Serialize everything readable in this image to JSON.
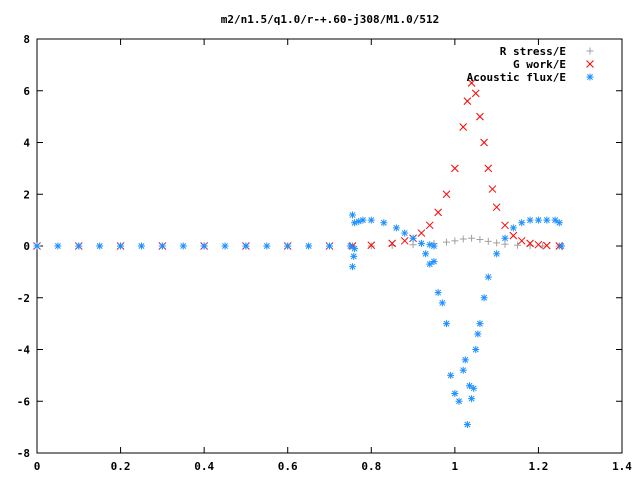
{
  "chart_data": {
    "type": "scatter",
    "title": "m2/n1.5/q1.0/r-+.60-j308/M1.0/512",
    "xlabel": "",
    "ylabel": "",
    "xlim": [
      0,
      1.4
    ],
    "ylim": [
      -8,
      8
    ],
    "grid": false,
    "legend_position": "top-right",
    "x_ticks": [
      "0",
      "0.2",
      "0.4",
      "0.6",
      "0.8",
      "1",
      "1.2",
      "1.4"
    ],
    "y_ticks": [
      "8",
      "6",
      "4",
      "2",
      "0",
      "-2",
      "-4",
      "-6",
      "-8"
    ],
    "series": [
      {
        "name": "R stress/E",
        "color": "#a0a0a0",
        "marker": "plus",
        "x": [
          0.0,
          0.1,
          0.2,
          0.3,
          0.4,
          0.5,
          0.6,
          0.7,
          0.755,
          0.8,
          0.85,
          0.9,
          0.95,
          0.98,
          1.0,
          1.02,
          1.04,
          1.06,
          1.08,
          1.1,
          1.12,
          1.15,
          1.18,
          1.21,
          1.25
        ],
        "y": [
          0.0,
          0.0,
          0.0,
          0.0,
          0.0,
          0.0,
          0.0,
          0.0,
          0.0,
          0.0,
          0.02,
          0.05,
          0.1,
          0.15,
          0.2,
          0.27,
          0.3,
          0.25,
          0.18,
          0.12,
          0.07,
          0.03,
          0.01,
          0.0,
          0.0
        ]
      },
      {
        "name": "G work/E",
        "color": "#ff0000",
        "marker": "cross",
        "x": [
          0.0,
          0.1,
          0.2,
          0.3,
          0.4,
          0.5,
          0.6,
          0.7,
          0.755,
          0.8,
          0.85,
          0.88,
          0.9,
          0.92,
          0.94,
          0.96,
          0.98,
          1.0,
          1.02,
          1.03,
          1.04,
          1.05,
          1.06,
          1.07,
          1.08,
          1.09,
          1.1,
          1.12,
          1.14,
          1.16,
          1.18,
          1.2,
          1.22,
          1.25
        ],
        "y": [
          0.0,
          0.0,
          0.0,
          0.0,
          0.0,
          0.0,
          0.0,
          0.0,
          0.0,
          0.03,
          0.1,
          0.2,
          0.3,
          0.5,
          0.8,
          1.3,
          2.0,
          3.0,
          4.6,
          5.6,
          6.3,
          5.9,
          5.0,
          4.0,
          3.0,
          2.2,
          1.5,
          0.8,
          0.4,
          0.2,
          0.1,
          0.05,
          0.02,
          0.0
        ]
      },
      {
        "name": "Acoustic flux/E",
        "color": "#1e90ff",
        "marker": "asterisk",
        "x": [
          0.0,
          0.05,
          0.1,
          0.15,
          0.2,
          0.25,
          0.3,
          0.35,
          0.4,
          0.45,
          0.5,
          0.55,
          0.6,
          0.65,
          0.7,
          0.75,
          0.755,
          0.76,
          0.77,
          0.78,
          0.8,
          0.83,
          0.86,
          0.88,
          0.9,
          0.92,
          0.94,
          0.95,
          0.755,
          0.758,
          0.76,
          0.93,
          0.94,
          0.95,
          0.96,
          0.97,
          0.98,
          0.99,
          1.0,
          1.01,
          1.02,
          1.025,
          1.03,
          1.035,
          1.04,
          1.045,
          1.05,
          1.055,
          1.06,
          1.07,
          1.08,
          1.1,
          1.12,
          1.14,
          1.16,
          1.18,
          1.2,
          1.22,
          1.24,
          1.25,
          1.255
        ],
        "y": [
          0.0,
          0.0,
          0.0,
          0.0,
          0.0,
          0.0,
          0.0,
          0.0,
          0.0,
          0.0,
          0.0,
          0.0,
          0.0,
          0.0,
          0.0,
          0.0,
          1.2,
          0.9,
          0.95,
          1.0,
          1.0,
          0.9,
          0.7,
          0.5,
          0.3,
          0.1,
          0.05,
          0.0,
          -0.8,
          -0.4,
          -0.1,
          -0.3,
          -0.7,
          -0.6,
          -1.8,
          -2.2,
          -3.0,
          -5.0,
          -5.7,
          -6.0,
          -4.8,
          -4.4,
          -6.9,
          -5.4,
          -5.9,
          -5.5,
          -4.0,
          -3.4,
          -3.0,
          -2.0,
          -1.2,
          -0.3,
          0.3,
          0.7,
          0.9,
          1.0,
          1.0,
          1.0,
          1.0,
          0.9,
          0.0
        ]
      }
    ]
  }
}
